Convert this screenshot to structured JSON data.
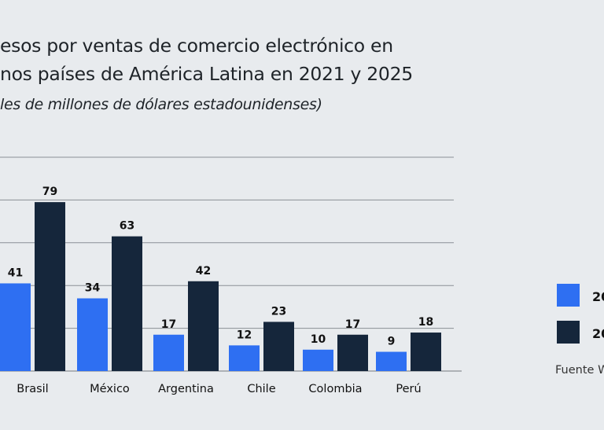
{
  "chart_data": {
    "type": "bar",
    "title_lines": [
      "esos por ventas de comercio electrónico en",
      "nos países de América Latina en 2021 y 2025"
    ],
    "subtitle": "les de millones de dólares estadounidenses)",
    "categories": [
      "Brasil",
      "México",
      "Argentina",
      "Chile",
      "Colombia",
      "Perú"
    ],
    "series": [
      {
        "name": "20",
        "color": "#2e6ff2",
        "values": [
          41,
          34,
          17,
          12,
          10,
          9
        ]
      },
      {
        "name": "20",
        "color": "#15263b",
        "values": [
          79,
          63,
          42,
          23,
          17,
          18
        ]
      }
    ],
    "ylim": [
      0,
      100
    ],
    "gridlines": [
      20,
      40,
      60,
      80,
      100
    ],
    "grid": true,
    "legend_placement": "right",
    "source": "Fuente W"
  }
}
